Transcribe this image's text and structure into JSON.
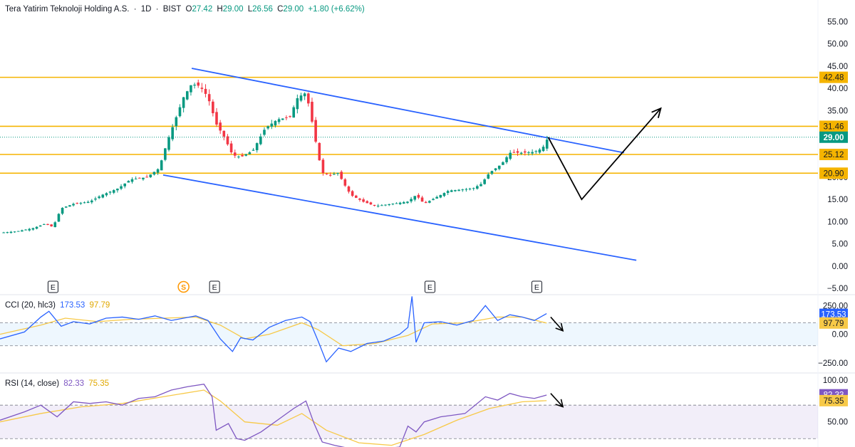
{
  "header": {
    "symbol": "Tera Yatirim Teknoloji Holding A.S.",
    "interval": "1D",
    "exchange": "BIST",
    "open_label": "O",
    "open": "27.42",
    "high_label": "H",
    "high": "29.00",
    "low_label": "L",
    "low": "26.56",
    "close_label": "C",
    "close": "29.00",
    "change": "+1.80 (+6.62%)"
  },
  "cci_legend": {
    "label": "CCI (20, hlc3)",
    "value": "173.53",
    "ma_value": "97.79"
  },
  "rsi_legend": {
    "label": "RSI (14, close)",
    "value": "82.33",
    "ma_value": "75.35"
  },
  "colors": {
    "up": "#089981",
    "down": "#f23645",
    "channel": "#2962ff",
    "level": "#f5b400",
    "cci": "#2962ff",
    "cci_ma": "#f7c948",
    "rsi": "#7e57c2",
    "rsi_ma": "#f7c948",
    "projection": "#000000"
  },
  "chart_data": [
    {
      "type": "candlestick",
      "title": "Tera Yatirim Teknoloji Holding A.S. · 1D · BIST",
      "y_ticks": [
        "55.00",
        "50.00",
        "45.00",
        "40.00",
        "35.00",
        "30.00",
        "25.00",
        "20.00",
        "15.00",
        "10.00",
        "5.00",
        "0.00",
        "−5.00"
      ],
      "ylim": [
        -5,
        57
      ],
      "current_price": 29.0,
      "current_price_label": "29.00",
      "horizontal_levels": [
        {
          "value": 42.48,
          "label": "42.48"
        },
        {
          "value": 31.46,
          "label": "31.46"
        },
        {
          "value": 25.12,
          "label": "25.12"
        },
        {
          "value": 20.9,
          "label": "20.90"
        }
      ],
      "channel_upper": [
        {
          "bar": 0.235,
          "price": 44.5
        },
        {
          "bar": 0.765,
          "price": 25.5
        }
      ],
      "channel_lower": [
        {
          "bar": 0.2,
          "price": 20.5
        },
        {
          "bar": 0.78,
          "price": 1.3
        }
      ],
      "projection_path": [
        {
          "bar": 0.672,
          "price": 29.0
        },
        {
          "bar": 0.713,
          "price": 15.0
        },
        {
          "bar": 0.81,
          "price": 35.5
        }
      ],
      "event_markers": [
        {
          "bar": 0.065,
          "label": "E"
        },
        {
          "bar": 0.225,
          "label": "S"
        },
        {
          "bar": 0.263,
          "label": "E"
        },
        {
          "bar": 0.527,
          "label": "E"
        },
        {
          "bar": 0.658,
          "label": "E"
        }
      ],
      "close_path": [
        [
          0,
          7.5
        ],
        [
          0.02,
          7.8
        ],
        [
          0.04,
          8.5
        ],
        [
          0.055,
          9.5
        ],
        [
          0.065,
          8.8
        ],
        [
          0.075,
          13
        ],
        [
          0.09,
          14
        ],
        [
          0.11,
          14.5
        ],
        [
          0.125,
          16
        ],
        [
          0.145,
          17.5
        ],
        [
          0.16,
          19.5
        ],
        [
          0.18,
          20
        ],
        [
          0.195,
          22
        ],
        [
          0.205,
          28
        ],
        [
          0.215,
          33
        ],
        [
          0.225,
          38
        ],
        [
          0.235,
          41
        ],
        [
          0.245,
          40.5
        ],
        [
          0.255,
          38
        ],
        [
          0.265,
          32
        ],
        [
          0.275,
          29
        ],
        [
          0.285,
          25
        ],
        [
          0.295,
          24.5
        ],
        [
          0.31,
          26
        ],
        [
          0.325,
          31
        ],
        [
          0.34,
          33
        ],
        [
          0.355,
          33.5
        ],
        [
          0.365,
          38
        ],
        [
          0.375,
          39
        ],
        [
          0.38,
          35
        ],
        [
          0.385,
          30
        ],
        [
          0.39,
          25
        ],
        [
          0.395,
          21
        ],
        [
          0.405,
          20.5
        ],
        [
          0.415,
          21
        ],
        [
          0.42,
          19
        ],
        [
          0.43,
          16
        ],
        [
          0.445,
          14.5
        ],
        [
          0.46,
          13.5
        ],
        [
          0.48,
          14
        ],
        [
          0.5,
          14.5
        ],
        [
          0.51,
          16
        ],
        [
          0.52,
          14
        ],
        [
          0.535,
          15.5
        ],
        [
          0.55,
          17
        ],
        [
          0.565,
          17.2
        ],
        [
          0.58,
          17.5
        ],
        [
          0.59,
          18.5
        ],
        [
          0.6,
          21
        ],
        [
          0.615,
          23
        ],
        [
          0.625,
          25.5
        ],
        [
          0.64,
          25.5
        ],
        [
          0.655,
          25.7
        ],
        [
          0.665,
          26.5
        ],
        [
          0.672,
          29
        ]
      ]
    },
    {
      "type": "line",
      "title": "CCI (20, hlc3)",
      "y_ticks": [
        "250.00",
        "0.00",
        "−250.00"
      ],
      "ylim": [
        -300,
        320
      ],
      "bands": [
        100,
        -100
      ],
      "last_value": 173.53,
      "last_value_label": "173.53",
      "ma_last_value": 97.79,
      "ma_last_value_label": "97.79",
      "series": [
        {
          "values_path": [
            [
              0,
              -40
            ],
            [
              0.03,
              20
            ],
            [
              0.05,
              150
            ],
            [
              0.06,
              200
            ],
            [
              0.075,
              70
            ],
            [
              0.09,
              110
            ],
            [
              0.11,
              90
            ],
            [
              0.13,
              140
            ],
            [
              0.15,
              150
            ],
            [
              0.17,
              130
            ],
            [
              0.19,
              160
            ],
            [
              0.21,
              120
            ],
            [
              0.225,
              140
            ],
            [
              0.24,
              160
            ],
            [
              0.255,
              120
            ],
            [
              0.27,
              -40
            ],
            [
              0.285,
              -150
            ],
            [
              0.295,
              -30
            ],
            [
              0.31,
              -50
            ],
            [
              0.33,
              60
            ],
            [
              0.35,
              120
            ],
            [
              0.37,
              150
            ],
            [
              0.38,
              110
            ],
            [
              0.39,
              -60
            ],
            [
              0.4,
              -240
            ],
            [
              0.415,
              -120
            ],
            [
              0.43,
              -150
            ],
            [
              0.45,
              -80
            ],
            [
              0.47,
              -60
            ],
            [
              0.49,
              0
            ],
            [
              0.5,
              60
            ],
            [
              0.505,
              330
            ],
            [
              0.51,
              -70
            ],
            [
              0.52,
              100
            ],
            [
              0.54,
              110
            ],
            [
              0.56,
              80
            ],
            [
              0.58,
              120
            ],
            [
              0.595,
              250
            ],
            [
              0.61,
              120
            ],
            [
              0.625,
              170
            ],
            [
              0.64,
              150
            ],
            [
              0.655,
              120
            ],
            [
              0.67,
              180
            ]
          ]
        },
        {
          "values_path": [
            [
              0,
              0
            ],
            [
              0.05,
              80
            ],
            [
              0.08,
              140
            ],
            [
              0.12,
              110
            ],
            [
              0.16,
              130
            ],
            [
              0.2,
              140
            ],
            [
              0.24,
              150
            ],
            [
              0.27,
              80
            ],
            [
              0.3,
              -40
            ],
            [
              0.33,
              0
            ],
            [
              0.37,
              100
            ],
            [
              0.39,
              40
            ],
            [
              0.42,
              -100
            ],
            [
              0.46,
              -80
            ],
            [
              0.5,
              -10
            ],
            [
              0.53,
              90
            ],
            [
              0.57,
              100
            ],
            [
              0.61,
              150
            ],
            [
              0.64,
              150
            ],
            [
              0.67,
              98
            ]
          ]
        }
      ],
      "projection_arrow": [
        {
          "bar": 0.675,
          "v": 150
        },
        {
          "bar": 0.69,
          "v": 30
        }
      ]
    },
    {
      "type": "line",
      "title": "RSI (14, close)",
      "y_ticks": [
        "100.00",
        "50.00"
      ],
      "ylim": [
        20,
        105
      ],
      "bands": [
        70,
        30
      ],
      "last_value": 82.33,
      "last_value_label": "82.33",
      "ma_last_value": 75.35,
      "ma_last_value_label": "75.35",
      "series": [
        {
          "values_path": [
            [
              0,
              52
            ],
            [
              0.03,
              62
            ],
            [
              0.05,
              70
            ],
            [
              0.07,
              56
            ],
            [
              0.09,
              74
            ],
            [
              0.11,
              72
            ],
            [
              0.13,
              74
            ],
            [
              0.15,
              70
            ],
            [
              0.17,
              78
            ],
            [
              0.19,
              80
            ],
            [
              0.21,
              88
            ],
            [
              0.23,
              92
            ],
            [
              0.25,
              95
            ],
            [
              0.26,
              80
            ],
            [
              0.265,
              40
            ],
            [
              0.28,
              48
            ],
            [
              0.29,
              30
            ],
            [
              0.3,
              28
            ],
            [
              0.32,
              38
            ],
            [
              0.34,
              52
            ],
            [
              0.36,
              66
            ],
            [
              0.375,
              75
            ],
            [
              0.385,
              48
            ],
            [
              0.395,
              26
            ],
            [
              0.41,
              22
            ],
            [
              0.43,
              18
            ],
            [
              0.45,
              16
            ],
            [
              0.47,
              18
            ],
            [
              0.49,
              20
            ],
            [
              0.5,
              45
            ],
            [
              0.51,
              38
            ],
            [
              0.52,
              50
            ],
            [
              0.54,
              56
            ],
            [
              0.57,
              60
            ],
            [
              0.595,
              80
            ],
            [
              0.61,
              76
            ],
            [
              0.625,
              84
            ],
            [
              0.64,
              80
            ],
            [
              0.655,
              78
            ],
            [
              0.67,
              82
            ]
          ]
        },
        {
          "values_path": [
            [
              0,
              50
            ],
            [
              0.05,
              60
            ],
            [
              0.1,
              68
            ],
            [
              0.15,
              72
            ],
            [
              0.2,
              80
            ],
            [
              0.25,
              88
            ],
            [
              0.27,
              75
            ],
            [
              0.3,
              50
            ],
            [
              0.34,
              46
            ],
            [
              0.37,
              60
            ],
            [
              0.4,
              40
            ],
            [
              0.44,
              25
            ],
            [
              0.48,
              22
            ],
            [
              0.52,
              35
            ],
            [
              0.56,
              52
            ],
            [
              0.6,
              66
            ],
            [
              0.64,
              74
            ],
            [
              0.67,
              75.35
            ]
          ]
        }
      ],
      "projection_arrow": [
        {
          "bar": 0.675,
          "v": 84
        },
        {
          "bar": 0.69,
          "v": 68
        }
      ]
    }
  ]
}
